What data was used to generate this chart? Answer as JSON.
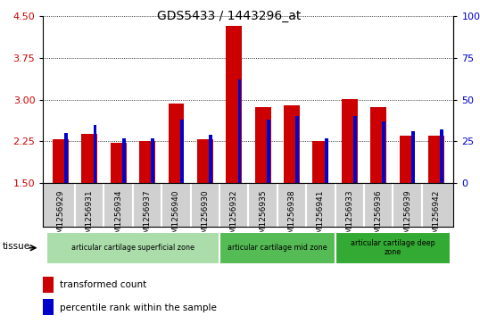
{
  "title": "GDS5433 / 1443296_at",
  "samples": [
    "GSM1256929",
    "GSM1256931",
    "GSM1256934",
    "GSM1256937",
    "GSM1256940",
    "GSM1256930",
    "GSM1256932",
    "GSM1256935",
    "GSM1256938",
    "GSM1256941",
    "GSM1256933",
    "GSM1256936",
    "GSM1256939",
    "GSM1256942"
  ],
  "transformed_count": [
    2.28,
    2.38,
    2.22,
    2.26,
    2.93,
    2.28,
    4.32,
    2.86,
    2.89,
    2.26,
    3.01,
    2.87,
    2.35,
    2.35
  ],
  "percentile_rank": [
    30,
    35,
    27,
    27,
    38,
    29,
    62,
    38,
    40,
    27,
    40,
    37,
    31,
    32
  ],
  "ylim_left": [
    1.5,
    4.5
  ],
  "ylim_right": [
    0,
    100
  ],
  "yticks_left": [
    1.5,
    2.25,
    3.0,
    3.75,
    4.5
  ],
  "yticks_right": [
    0,
    25,
    50,
    75,
    100
  ],
  "bar_color_red": "#cc0000",
  "bar_color_blue": "#0000cc",
  "plot_bg": "#ffffff",
  "xticklabel_bg": "#d0d0d0",
  "tissue_groups": [
    {
      "label": "articular cartilage superficial zone",
      "start": 0,
      "end": 6,
      "color": "#aaddaa"
    },
    {
      "label": "articular cartilage mid zone",
      "start": 6,
      "end": 10,
      "color": "#55bb55"
    },
    {
      "label": "articular cartilage deep\nzone",
      "start": 10,
      "end": 14,
      "color": "#33aa33"
    }
  ],
  "tissue_label": "tissue",
  "legend_red": "transformed count",
  "legend_blue": "percentile rank within the sample",
  "red_bar_width": 0.55,
  "blue_bar_width": 0.12
}
